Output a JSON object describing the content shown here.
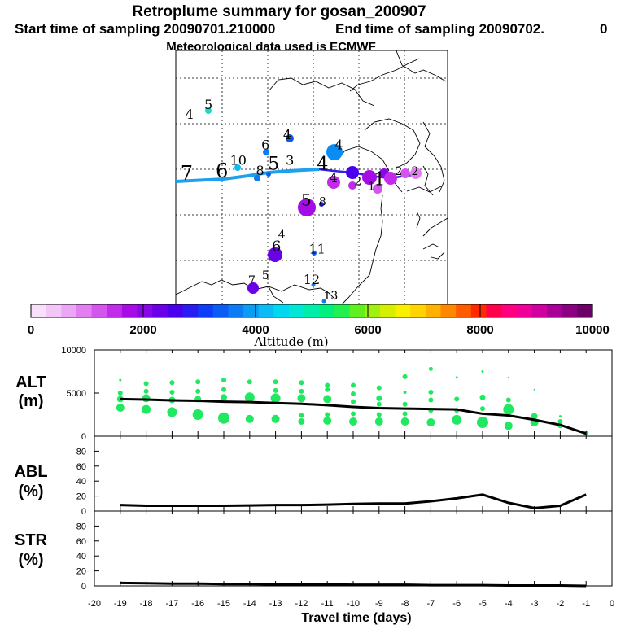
{
  "header": {
    "title": "Retroplume summary for gosan_200907",
    "start_label": "Start time of sampling 20090701.210000",
    "end_label": "End time of sampling 20090702.",
    "end_suffix": "0",
    "met_label": "Meteorological data used is ECMWF"
  },
  "colorbar": {
    "label": "Altitude  (m)",
    "ticks": [
      "0",
      "2000",
      "4000",
      "6000",
      "8000",
      "10000"
    ],
    "tick_values": [
      0,
      2000,
      4000,
      6000,
      8000,
      10000
    ],
    "colors": [
      "#f8e0fb",
      "#f3c6f8",
      "#eca6f6",
      "#e27ef2",
      "#d455ee",
      "#c12be9",
      "#a60ce5",
      "#8807e6",
      "#6a00e8",
      "#4a00ec",
      "#2a1bf2",
      "#0f3cf6",
      "#0b5cf5",
      "#0b7cf4",
      "#0b9cf4",
      "#0bbcf4",
      "#00d8f0",
      "#00e8d4",
      "#00eeaa",
      "#00f080",
      "#20f050",
      "#60f020",
      "#a0f010",
      "#d4f000",
      "#f8f000",
      "#ffd400",
      "#ffb000",
      "#ff8800",
      "#ff5c00",
      "#ff2a00",
      "#ff004c",
      "#ff007e",
      "#f00099",
      "#d000a0",
      "#a80096",
      "#8a0080",
      "#6a0068"
    ]
  },
  "map": {
    "trajectory_label_color": "#1fa0ec",
    "labels": [
      {
        "t": "4",
        "lon": 0.05,
        "lat": 0.27,
        "s": 16
      },
      {
        "t": "5",
        "lon": 0.12,
        "lat": 0.23,
        "s": 16,
        "c": "#1fd8c8"
      },
      {
        "t": "4",
        "lon": 0.41,
        "lat": 0.35,
        "s": 16
      },
      {
        "t": "6",
        "lon": 0.33,
        "lat": 0.39,
        "s": 16
      },
      {
        "t": "4",
        "lon": 0.6,
        "lat": 0.39,
        "s": 16
      },
      {
        "t": "10",
        "lon": 0.23,
        "lat": 0.45,
        "s": 16
      },
      {
        "t": "3",
        "lon": 0.42,
        "lat": 0.45,
        "s": 16
      },
      {
        "t": "5",
        "lon": 0.36,
        "lat": 0.47,
        "s": 22
      },
      {
        "t": "8",
        "lon": 0.31,
        "lat": 0.49,
        "s": 16
      },
      {
        "t": "4",
        "lon": 0.54,
        "lat": 0.47,
        "s": 22
      },
      {
        "t": "7",
        "lon": 0.04,
        "lat": 0.51,
        "s": 24
      },
      {
        "t": "6",
        "lon": 0.17,
        "lat": 0.5,
        "s": 24
      },
      {
        "t": "4",
        "lon": 0.58,
        "lat": 0.52,
        "s": 16
      },
      {
        "t": "2",
        "lon": 0.67,
        "lat": 0.53,
        "s": 14
      },
      {
        "t": "1",
        "lon": 0.75,
        "lat": 0.53,
        "s": 22
      },
      {
        "t": "1",
        "lon": 0.72,
        "lat": 0.55,
        "s": 14
      },
      {
        "t": "2",
        "lon": 0.82,
        "lat": 0.49,
        "s": 14
      },
      {
        "t": "2",
        "lon": 0.88,
        "lat": 0.49,
        "s": 14
      },
      {
        "t": "5",
        "lon": 0.48,
        "lat": 0.61,
        "s": 20
      },
      {
        "t": "8",
        "lon": 0.54,
        "lat": 0.61,
        "s": 14
      },
      {
        "t": "4",
        "lon": 0.39,
        "lat": 0.74,
        "s": 14
      },
      {
        "t": "6",
        "lon": 0.37,
        "lat": 0.79,
        "s": 18
      },
      {
        "t": "11",
        "lon": 0.52,
        "lat": 0.8,
        "s": 16
      },
      {
        "t": "5",
        "lon": 0.33,
        "lat": 0.9,
        "s": 14
      },
      {
        "t": "7",
        "lon": 0.28,
        "lat": 0.92,
        "s": 14
      },
      {
        "t": "12",
        "lon": 0.5,
        "lat": 0.92,
        "s": 16
      },
      {
        "t": "13",
        "lon": 0.57,
        "lat": 0.98,
        "s": 14
      }
    ]
  },
  "chart_data": [
    {
      "type": "scatter",
      "panel": "ALT",
      "ylabel_line1": "ALT",
      "ylabel_line2": "(m)",
      "xlabel": "Travel time (days)",
      "xlim": [
        -20,
        0
      ],
      "ylim": [
        0,
        10000
      ],
      "yticks": [
        0,
        5000,
        10000
      ],
      "xticks": [
        -20,
        -19,
        -18,
        -17,
        -16,
        -15,
        -14,
        -13,
        -12,
        -11,
        -10,
        -9,
        -8,
        -7,
        -6,
        -5,
        -4,
        -3,
        -2,
        -1,
        0
      ],
      "xtick_labels": [
        "-20",
        "-19",
        "-18",
        "-17",
        "-16",
        "-15",
        "-14",
        "-13",
        "-12",
        "-11",
        "-10",
        "-9",
        "-8",
        "-7",
        "-6",
        "-5",
        "-4",
        "-3",
        "-2",
        "-1",
        "0"
      ],
      "line": {
        "x": [
          -19,
          -18,
          -17,
          -16,
          -15,
          -14,
          -13,
          -12,
          -11,
          -10,
          -9,
          -8,
          -7,
          -6,
          -5,
          -4,
          -3,
          -2,
          -1
        ],
        "y": [
          4300,
          4250,
          4150,
          4100,
          4000,
          3950,
          3850,
          3750,
          3600,
          3400,
          3250,
          3200,
          3150,
          3100,
          2600,
          2400,
          1900,
          1300,
          300
        ]
      },
      "points": [
        {
          "x": -19,
          "y": 6500,
          "r": 1.5
        },
        {
          "x": -19,
          "y": 5000,
          "r": 3
        },
        {
          "x": -19,
          "y": 4300,
          "r": 4
        },
        {
          "x": -19,
          "y": 3300,
          "r": 5
        },
        {
          "x": -18,
          "y": 6100,
          "r": 3
        },
        {
          "x": -18,
          "y": 5200,
          "r": 3
        },
        {
          "x": -18,
          "y": 4400,
          "r": 5
        },
        {
          "x": -18,
          "y": 3100,
          "r": 5.5
        },
        {
          "x": -17,
          "y": 6200,
          "r": 3
        },
        {
          "x": -17,
          "y": 5100,
          "r": 3
        },
        {
          "x": -17,
          "y": 4200,
          "r": 4
        },
        {
          "x": -17,
          "y": 2800,
          "r": 6
        },
        {
          "x": -16,
          "y": 6300,
          "r": 3
        },
        {
          "x": -16,
          "y": 5200,
          "r": 3
        },
        {
          "x": -16,
          "y": 4300,
          "r": 4
        },
        {
          "x": -16,
          "y": 2500,
          "r": 6.5
        },
        {
          "x": -15,
          "y": 6500,
          "r": 3
        },
        {
          "x": -15,
          "y": 5400,
          "r": 3
        },
        {
          "x": -15,
          "y": 4500,
          "r": 4
        },
        {
          "x": -15,
          "y": 2100,
          "r": 7
        },
        {
          "x": -14,
          "y": 6300,
          "r": 3
        },
        {
          "x": -14,
          "y": 4500,
          "r": 6
        },
        {
          "x": -14,
          "y": 2000,
          "r": 5
        },
        {
          "x": -13,
          "y": 6300,
          "r": 3
        },
        {
          "x": -13,
          "y": 5300,
          "r": 3
        },
        {
          "x": -13,
          "y": 4400,
          "r": 6
        },
        {
          "x": -13,
          "y": 2000,
          "r": 5
        },
        {
          "x": -12,
          "y": 6200,
          "r": 3
        },
        {
          "x": -12,
          "y": 5200,
          "r": 3
        },
        {
          "x": -12,
          "y": 4400,
          "r": 5
        },
        {
          "x": -12,
          "y": 2400,
          "r": 3
        },
        {
          "x": -12,
          "y": 1700,
          "r": 4
        },
        {
          "x": -11,
          "y": 5900,
          "r": 3
        },
        {
          "x": -11,
          "y": 5400,
          "r": 3
        },
        {
          "x": -11,
          "y": 4300,
          "r": 5
        },
        {
          "x": -11,
          "y": 2500,
          "r": 3
        },
        {
          "x": -11,
          "y": 1800,
          "r": 5
        },
        {
          "x": -10,
          "y": 5900,
          "r": 3
        },
        {
          "x": -10,
          "y": 4900,
          "r": 3
        },
        {
          "x": -10,
          "y": 4000,
          "r": 3
        },
        {
          "x": -10,
          "y": 2600,
          "r": 3
        },
        {
          "x": -10,
          "y": 1700,
          "r": 5
        },
        {
          "x": -9,
          "y": 5600,
          "r": 3
        },
        {
          "x": -9,
          "y": 4400,
          "r": 3.5
        },
        {
          "x": -9,
          "y": 3700,
          "r": 3
        },
        {
          "x": -9,
          "y": 2500,
          "r": 3
        },
        {
          "x": -9,
          "y": 1700,
          "r": 5
        },
        {
          "x": -8,
          "y": 6900,
          "r": 3
        },
        {
          "x": -8,
          "y": 5100,
          "r": 2
        },
        {
          "x": -8,
          "y": 3700,
          "r": 3
        },
        {
          "x": -8,
          "y": 2600,
          "r": 3
        },
        {
          "x": -8,
          "y": 1700,
          "r": 5
        },
        {
          "x": -7,
          "y": 7800,
          "r": 2.5
        },
        {
          "x": -7,
          "y": 5100,
          "r": 3
        },
        {
          "x": -7,
          "y": 4200,
          "r": 3
        },
        {
          "x": -7,
          "y": 3000,
          "r": 3
        },
        {
          "x": -7,
          "y": 1600,
          "r": 5
        },
        {
          "x": -6,
          "y": 6800,
          "r": 1.5
        },
        {
          "x": -6,
          "y": 4300,
          "r": 3
        },
        {
          "x": -6,
          "y": 3000,
          "r": 3
        },
        {
          "x": -6,
          "y": 1900,
          "r": 6
        },
        {
          "x": -5,
          "y": 7500,
          "r": 1.5
        },
        {
          "x": -5,
          "y": 4500,
          "r": 3.5
        },
        {
          "x": -5,
          "y": 3200,
          "r": 3
        },
        {
          "x": -5,
          "y": 1600,
          "r": 7
        },
        {
          "x": -4,
          "y": 6800,
          "r": 1
        },
        {
          "x": -4,
          "y": 4200,
          "r": 3
        },
        {
          "x": -4,
          "y": 3100,
          "r": 6.5
        },
        {
          "x": -4,
          "y": 1200,
          "r": 5
        },
        {
          "x": -3,
          "y": 5400,
          "r": 1
        },
        {
          "x": -3,
          "y": 2300,
          "r": 4
        },
        {
          "x": -3,
          "y": 1600,
          "r": 5
        },
        {
          "x": -2,
          "y": 2300,
          "r": 1.5
        },
        {
          "x": -2,
          "y": 1700,
          "r": 3
        },
        {
          "x": -2,
          "y": 1200,
          "r": 3
        },
        {
          "x": -1,
          "y": 400,
          "r": 3
        }
      ]
    },
    {
      "type": "line",
      "panel": "ABL",
      "ylabel_line1": "ABL",
      "ylabel_line2": "(%)",
      "xlim": [
        -20,
        0
      ],
      "ylim": [
        0,
        100
      ],
      "yticks": [
        0,
        20,
        40,
        60,
        80
      ],
      "x": [
        -19,
        -18,
        -17,
        -16,
        -15,
        -14,
        -13,
        -12,
        -11,
        -10,
        -9,
        -8,
        -7,
        -6,
        -5,
        -4,
        -3,
        -2,
        -1
      ],
      "values": [
        8,
        7,
        7,
        7,
        7,
        7.5,
        8,
        8,
        8.5,
        9.5,
        10,
        10,
        13,
        17,
        22,
        11,
        4,
        7,
        22
      ]
    },
    {
      "type": "line",
      "panel": "STR",
      "ylabel_line1": "STR",
      "ylabel_line2": "(%)",
      "xlim": [
        -20,
        0
      ],
      "ylim": [
        0,
        100
      ],
      "yticks": [
        0,
        20,
        40,
        60,
        80
      ],
      "x": [
        -19,
        -18,
        -17,
        -16,
        -15,
        -14,
        -13,
        -12,
        -11,
        -10,
        -9,
        -8,
        -7,
        -6,
        -5,
        -4,
        -3,
        -2,
        -1
      ],
      "values": [
        4,
        3.5,
        3,
        3,
        2.5,
        2.5,
        2,
        2,
        2,
        1.5,
        1.5,
        1.5,
        1,
        1,
        1,
        0.5,
        0.5,
        0.5,
        0
      ]
    }
  ]
}
